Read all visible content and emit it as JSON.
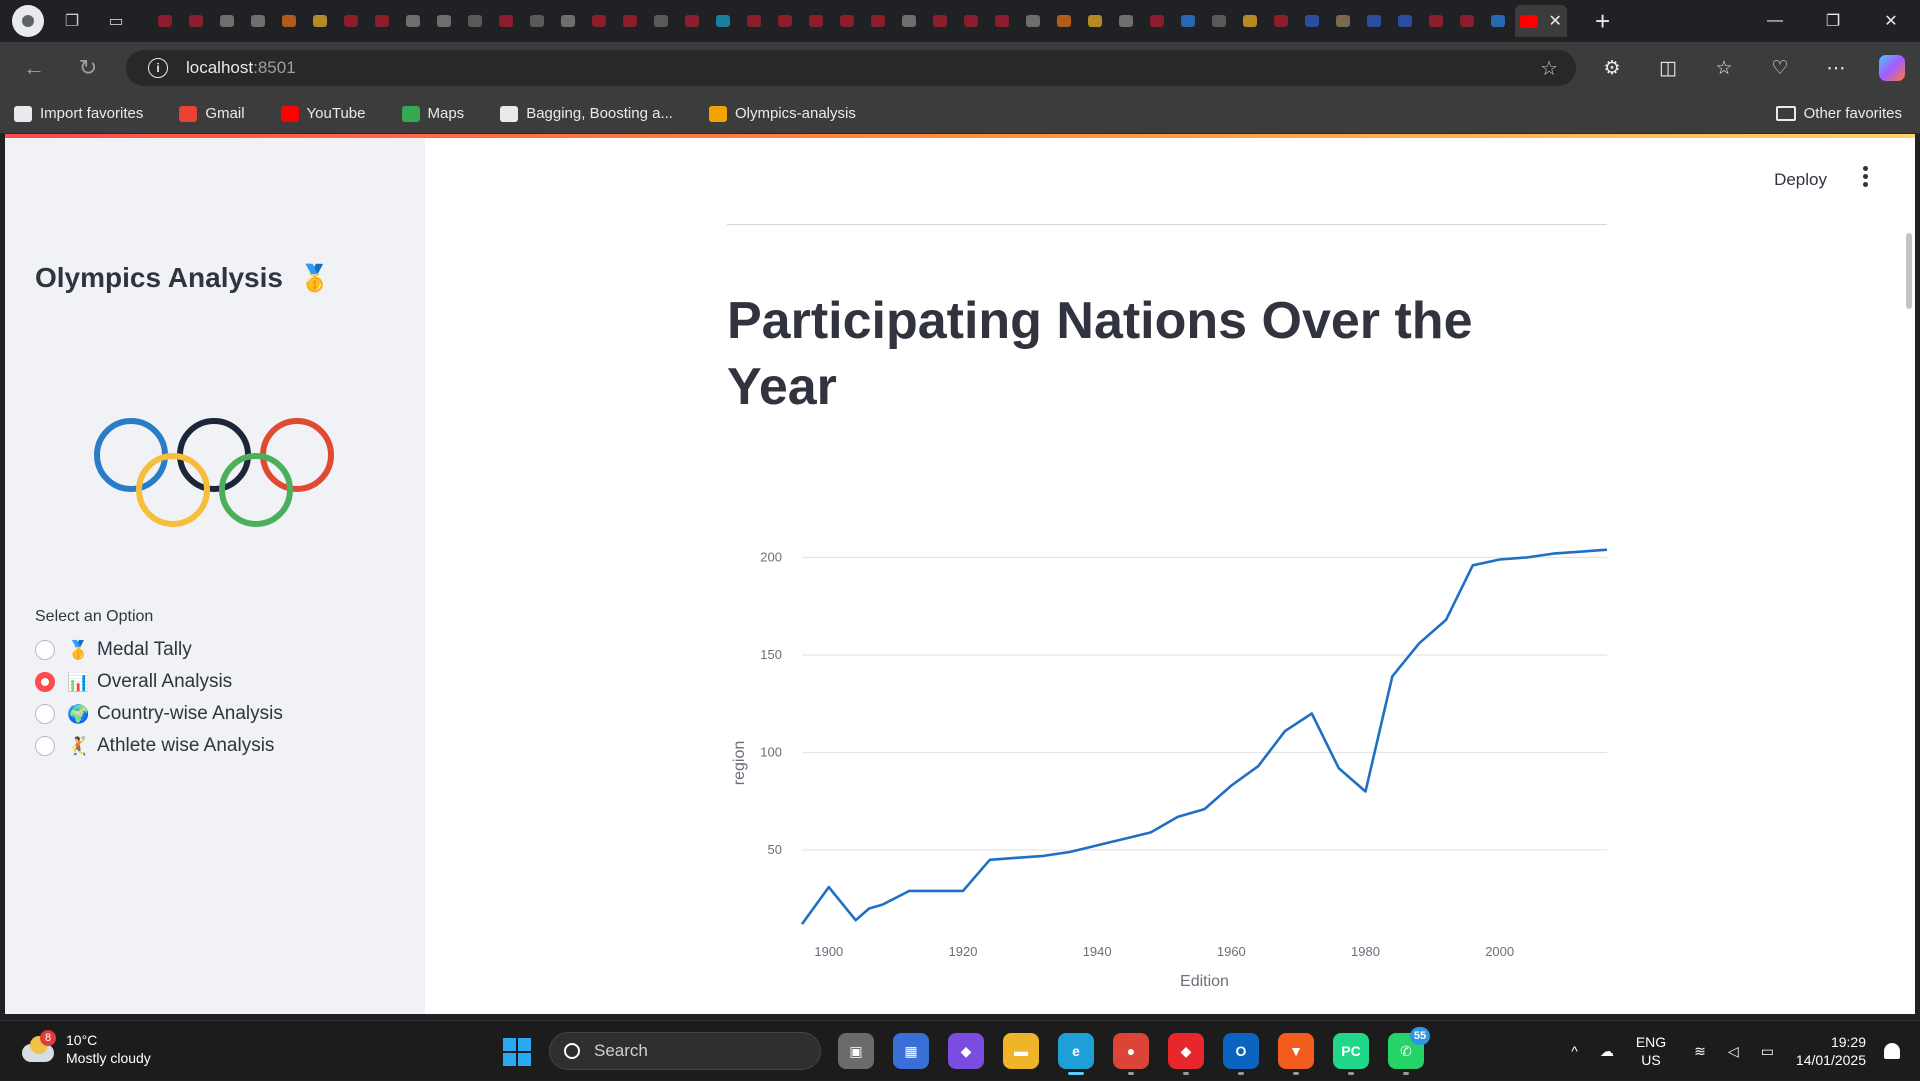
{
  "browser": {
    "url_host": "localhost",
    "url_port": ":8501",
    "bookmarks": [
      {
        "label": "Import favorites",
        "color": "#e8eaed"
      },
      {
        "label": "Gmail",
        "color": "#ea4335"
      },
      {
        "label": "YouTube",
        "color": "#ff0000"
      },
      {
        "label": "Maps",
        "color": "#34a853"
      },
      {
        "label": "Bagging, Boosting a...",
        "color": "#e8eaed"
      },
      {
        "label": "Olympics-analysis",
        "color": "#f4a300"
      }
    ],
    "other_favorites": "Other favorites",
    "tab_colors": [
      "#8b1e2d",
      "#8b1e2d",
      "#6e6e6e",
      "#6e6e6e",
      "#b25b1a",
      "#b58a26",
      "#8b1e2d",
      "#8b1e2d",
      "#6e6e6e",
      "#6e6e6e",
      "#5a5a5a",
      "#8b1e2d",
      "#5a5a5a",
      "#6e6e6e",
      "#8b1e2d",
      "#8b1e2d",
      "#5a5a5a",
      "#8b1e2d",
      "#1a7fa0",
      "#8b1e2d",
      "#8b1e2d",
      "#8b1e2d",
      "#8b1e2d",
      "#8b1e2d",
      "#6e6e6e",
      "#8b1e2d",
      "#8b1e2d",
      "#8b1e2d",
      "#6e6e6e",
      "#b25b1a",
      "#b58a26",
      "#6e6e6e",
      "#8b1e2d",
      "#2867b2",
      "#5a5a5a",
      "#b58a26",
      "#8b1e2d",
      "#2b4fa0",
      "#7a6a50",
      "#2b4fa0",
      "#2b4fa0",
      "#8b1e2d",
      "#8b1e2d",
      "#2867b2"
    ]
  },
  "sidebar": {
    "title": "Olympics Analysis",
    "title_emoji": "🥇",
    "radio_label": "Select an Option",
    "options": [
      {
        "emoji": "🥇",
        "label": "Medal Tally",
        "selected": false
      },
      {
        "emoji": "📊",
        "label": "Overall Analysis",
        "selected": true
      },
      {
        "emoji": "🌍",
        "label": "Country-wise Analysis",
        "selected": false
      },
      {
        "emoji": "🤾",
        "label": "Athlete wise Analysis",
        "selected": false
      }
    ]
  },
  "header": {
    "deploy_label": "Deploy"
  },
  "main": {
    "heading": "Participating Nations Over the Year"
  },
  "chart_data": {
    "type": "line",
    "title": "",
    "xlabel": "Edition",
    "ylabel": "region",
    "xlim": [
      1896,
      2016
    ],
    "ylim": [
      10,
      210
    ],
    "x_ticks": [
      1900,
      1920,
      1940,
      1960,
      1980,
      2000
    ],
    "y_ticks": [
      50,
      100,
      150,
      200
    ],
    "grid": true,
    "line_color": "#1f6fc5",
    "series": [
      {
        "x": [
          1896,
          1900,
          1904,
          1906,
          1908,
          1912,
          1920,
          1924,
          1928,
          1932,
          1936,
          1948,
          1952,
          1956,
          1960,
          1964,
          1968,
          1972,
          1976,
          1980,
          1984,
          1988,
          1992,
          1996,
          2000,
          2004,
          2008,
          2012,
          2016
        ],
        "y": [
          12,
          31,
          14,
          20,
          22,
          29,
          29,
          45,
          46,
          47,
          49,
          59,
          67,
          71,
          83,
          93,
          111,
          120,
          92,
          80,
          139,
          156,
          168,
          196,
          199,
          200,
          202,
          203,
          204
        ]
      }
    ]
  },
  "taskbar": {
    "weather_temp": "10°C",
    "weather_desc": "Mostly cloudy",
    "weather_badge": "8",
    "search_placeholder": "Search",
    "whatsapp_badge": "55",
    "lang_1": "ENG",
    "lang_2": "US",
    "time": "19:29",
    "date": "14/01/2025",
    "apps": [
      {
        "name": "task-view-icon",
        "color": "#6b6b6b",
        "glyph": "▣"
      },
      {
        "name": "store-icon",
        "color": "#3a6fd8",
        "glyph": "▦"
      },
      {
        "name": "copilot-app-icon",
        "color": "#7a4ce0",
        "glyph": "◆"
      },
      {
        "name": "file-explorer-icon",
        "color": "#f0b429",
        "glyph": "▬"
      },
      {
        "name": "edge-icon",
        "color": "#1f9fd8",
        "glyph": "e",
        "active": true
      },
      {
        "name": "chrome-icon",
        "color": "#db4437",
        "glyph": "●"
      },
      {
        "name": "anydesk-icon",
        "color": "#e8272d",
        "glyph": "◆"
      },
      {
        "name": "outlook-icon",
        "color": "#0a64c0",
        "glyph": "O"
      },
      {
        "name": "brave-icon",
        "color": "#f25d1f",
        "glyph": "▼"
      },
      {
        "name": "pycharm-icon",
        "color": "#21d789",
        "glyph": "PC"
      },
      {
        "name": "whatsapp-icon",
        "color": "#25d366",
        "glyph": "✆"
      }
    ]
  }
}
